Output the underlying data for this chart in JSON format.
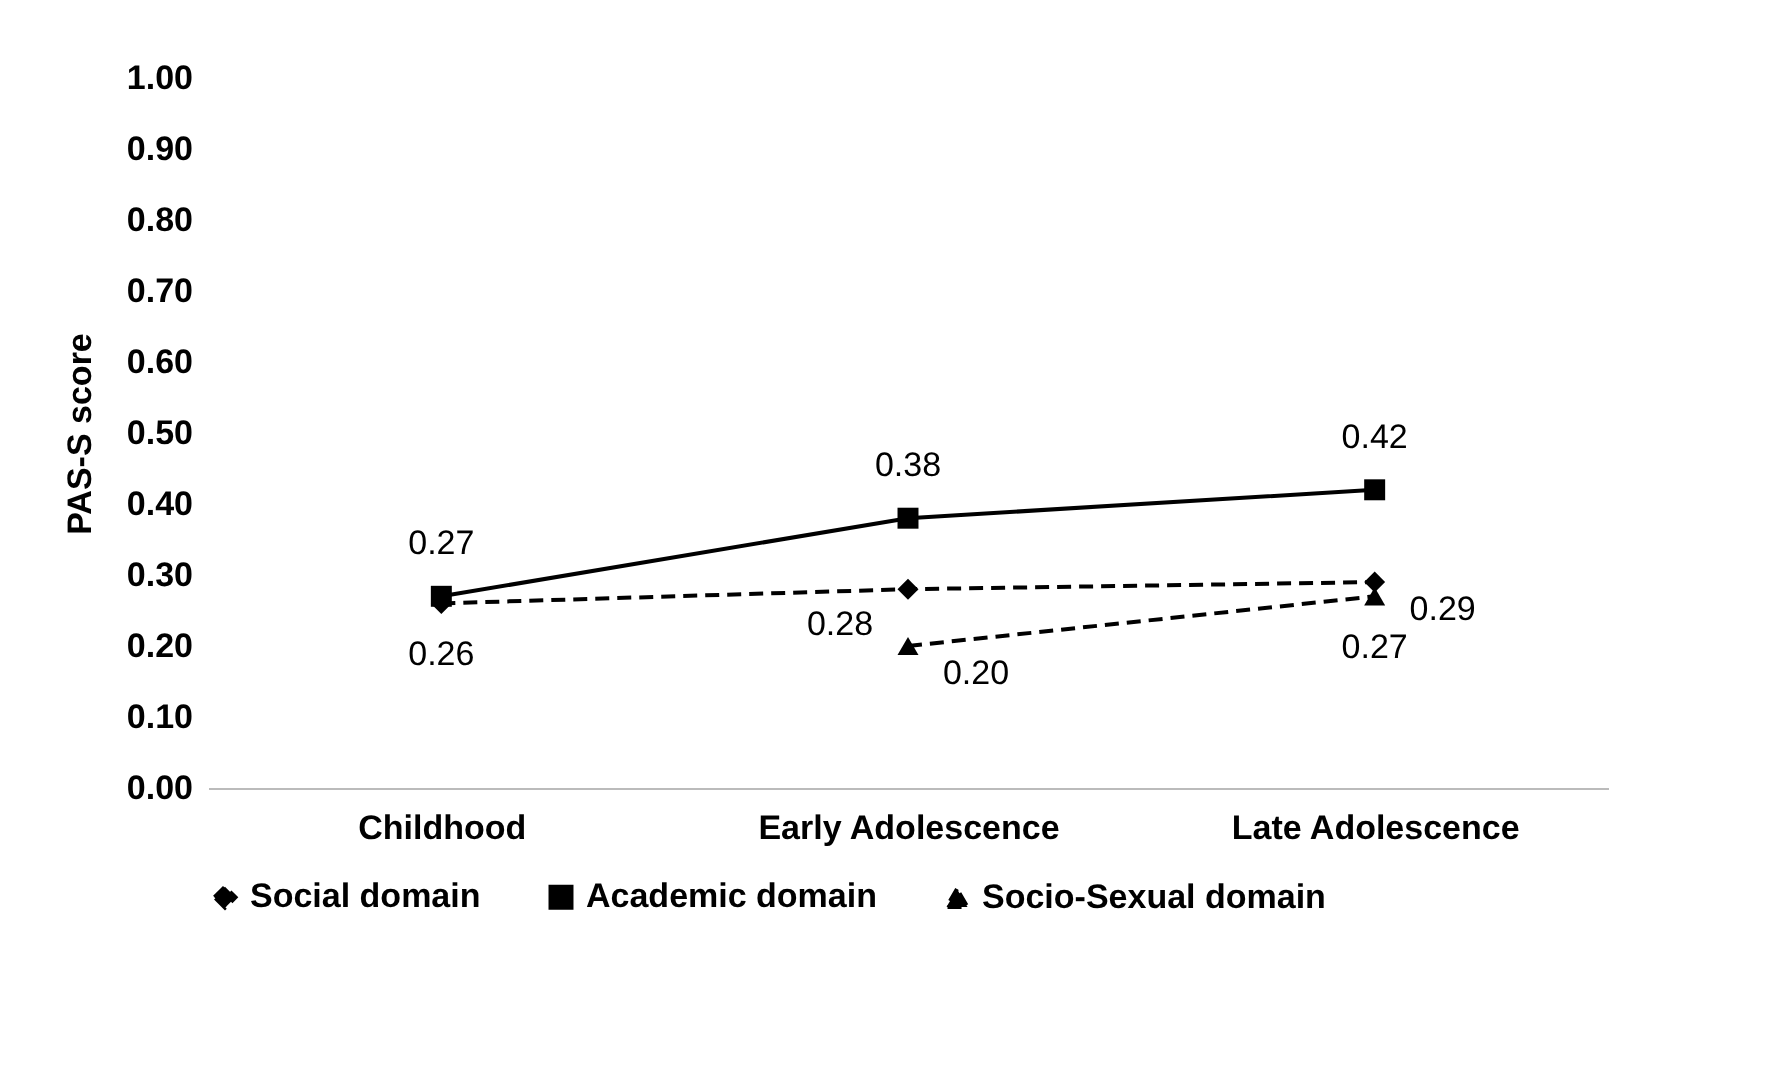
{
  "chart_data": {
    "type": "line",
    "ylabel": "PAS-S score",
    "categories": [
      "Childhood",
      "Early Adolescence",
      "Late Adolescence"
    ],
    "series": [
      {
        "name": "Social domain",
        "color": "#000000",
        "marker": "diamond",
        "line_style": "dashed",
        "values": [
          0.26,
          0.28,
          0.29
        ],
        "value_labels": [
          "0.26",
          "0.28",
          "0.29"
        ]
      },
      {
        "name": "Academic domain",
        "color": "#000000",
        "marker": "square",
        "line_style": "solid",
        "values": [
          0.27,
          0.38,
          0.42
        ],
        "value_labels": [
          "0.27",
          "0.38",
          "0.42"
        ]
      },
      {
        "name": "Socio-Sexual domain",
        "color": "#000000",
        "marker": "triangle",
        "line_style": "dashed",
        "values": [
          null,
          0.2,
          0.27
        ],
        "value_labels": [
          null,
          "0.20",
          "0.27"
        ]
      }
    ],
    "ylim": [
      0,
      1
    ],
    "yticks": [
      {
        "value": 0,
        "label": "0.00"
      },
      {
        "value": 0.1,
        "label": "0.10"
      },
      {
        "value": 0.2,
        "label": "0.20"
      },
      {
        "value": 0.3,
        "label": "0.30"
      },
      {
        "value": 0.4,
        "label": "0.40"
      },
      {
        "value": 0.5,
        "label": "0.50"
      },
      {
        "value": 0.6,
        "label": "0.60"
      },
      {
        "value": 0.7,
        "label": "0.70"
      },
      {
        "value": 0.8,
        "label": "0.80"
      },
      {
        "value": 0.9,
        "label": "0.90"
      },
      {
        "value": 1,
        "label": "1.00"
      }
    ],
    "grid": false,
    "legend": "bottom"
  }
}
